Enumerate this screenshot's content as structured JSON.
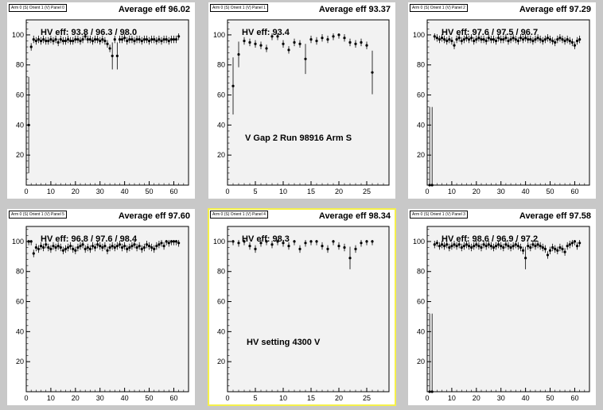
{
  "pads": [
    {
      "tag": "Arm 0 (S) Orient 1 (V) Panel 0",
      "average": "Average eff 96.02",
      "hv": "HV eff:   93.8 / 96.3 / 98.0",
      "note": "",
      "selected": false
    },
    {
      "tag": "Arm 0 (S) Orient 1 (V) Panel 1",
      "average": "Average eff 93.37",
      "hv": "HV eff:   93.4",
      "note": "V Gap 2 Run 98916 Arm S",
      "selected": false
    },
    {
      "tag": "Arm 0 (S) Orient 1 (V) Panel 2",
      "average": "Average eff 97.29",
      "hv": "HV eff:   97.6 / 97.5 / 96.7",
      "note": "",
      "selected": false
    },
    {
      "tag": "Arm 0 (S) Orient 1 (V) Panel 5",
      "average": "Average eff 97.60",
      "hv": "HV eff:   96.8 / 97.6 / 98.4",
      "note": "",
      "selected": false
    },
    {
      "tag": "Arm 0 (S) Orient 1 (V) Panel 4",
      "average": "Average eff 98.34",
      "hv": "HV eff:   98.3",
      "note": "HV setting 4300 V",
      "selected": true
    },
    {
      "tag": "Arm 0 (S) Orient 1 (V) Panel 3",
      "average": "Average eff 97.58",
      "hv": "HV eff:   98.6 / 96.9 / 97.2",
      "note": "",
      "selected": false
    }
  ],
  "chart_data": [
    {
      "type": "scatter",
      "xlim": [
        0,
        66
      ],
      "ylim": [
        0,
        110
      ],
      "xticks": [
        0,
        10,
        20,
        30,
        40,
        50,
        60
      ],
      "yticks": [
        20,
        40,
        60,
        80,
        100
      ],
      "x": [
        1,
        2,
        3,
        4,
        5,
        6,
        7,
        8,
        9,
        10,
        11,
        12,
        13,
        14,
        15,
        16,
        17,
        18,
        19,
        20,
        21,
        22,
        23,
        24,
        25,
        26,
        27,
        28,
        29,
        30,
        31,
        32,
        33,
        34,
        35,
        36,
        37,
        38,
        39,
        40,
        41,
        42,
        43,
        44,
        45,
        46,
        47,
        48,
        49,
        50,
        51,
        52,
        53,
        54,
        55,
        56,
        57,
        58,
        59,
        60,
        61,
        62
      ],
      "y": [
        40,
        92,
        97,
        96,
        97,
        96,
        97,
        96,
        96,
        97,
        96,
        97,
        95,
        97,
        96,
        96,
        97,
        96,
        96,
        97,
        97,
        96,
        97,
        99,
        97,
        97,
        96,
        97,
        97,
        96,
        97,
        96,
        94,
        91,
        86,
        97,
        86,
        97,
        97,
        98,
        96,
        97,
        97,
        96,
        97,
        97,
        96,
        97,
        97,
        96,
        97,
        97,
        96,
        97,
        96,
        97,
        97,
        96,
        97,
        97,
        97,
        99
      ]
    },
    {
      "type": "scatter",
      "xlim": [
        0,
        29
      ],
      "ylim": [
        0,
        110
      ],
      "xticks": [
        0,
        5,
        10,
        15,
        20,
        25
      ],
      "yticks": [
        20,
        40,
        60,
        80,
        100
      ],
      "x": [
        1,
        2,
        3,
        4,
        5,
        6,
        7,
        8,
        9,
        10,
        11,
        12,
        13,
        14,
        15,
        16,
        17,
        18,
        19,
        20,
        21,
        22,
        23,
        24,
        25,
        26
      ],
      "y": [
        66,
        87,
        96,
        95,
        94,
        93,
        91,
        99,
        99,
        94,
        90,
        95,
        94,
        84,
        97,
        96,
        98,
        97,
        99,
        100,
        98,
        95,
        94,
        95,
        93,
        75
      ]
    },
    {
      "type": "scatter",
      "xlim": [
        0,
        66
      ],
      "ylim": [
        0,
        110
      ],
      "xticks": [
        0,
        10,
        20,
        30,
        40,
        50,
        60
      ],
      "yticks": [
        20,
        40,
        60,
        80,
        100
      ],
      "x": [
        1,
        2,
        3,
        4,
        5,
        6,
        7,
        8,
        9,
        10,
        11,
        12,
        13,
        14,
        15,
        16,
        17,
        18,
        19,
        20,
        21,
        22,
        23,
        24,
        25,
        26,
        27,
        28,
        29,
        30,
        31,
        32,
        33,
        34,
        35,
        36,
        37,
        38,
        39,
        40,
        41,
        42,
        43,
        44,
        45,
        46,
        47,
        48,
        49,
        50,
        51,
        52,
        53,
        54,
        55,
        56,
        57,
        58,
        59,
        60,
        61,
        62
      ],
      "y": [
        0,
        0,
        99,
        98,
        97,
        98,
        97,
        96,
        97,
        96,
        93,
        97,
        98,
        96,
        97,
        98,
        97,
        98,
        96,
        97,
        98,
        97,
        97,
        96,
        98,
        97,
        97,
        96,
        98,
        97,
        97,
        98,
        96,
        97,
        98,
        97,
        96,
        98,
        97,
        98,
        97,
        97,
        96,
        97,
        98,
        97,
        96,
        97,
        98,
        97,
        96,
        95,
        97,
        98,
        97,
        96,
        97,
        96,
        95,
        93,
        96,
        97
      ]
    },
    {
      "type": "scatter",
      "xlim": [
        0,
        66
      ],
      "ylim": [
        0,
        110
      ],
      "xticks": [
        0,
        10,
        20,
        30,
        40,
        50,
        60
      ],
      "yticks": [
        20,
        40,
        60,
        80,
        100
      ],
      "x": [
        1,
        2,
        3,
        4,
        5,
        6,
        7,
        8,
        9,
        10,
        11,
        12,
        13,
        14,
        15,
        16,
        17,
        18,
        19,
        20,
        21,
        22,
        23,
        24,
        25,
        26,
        27,
        28,
        29,
        30,
        31,
        32,
        33,
        34,
        35,
        36,
        37,
        38,
        39,
        40,
        41,
        42,
        43,
        44,
        45,
        46,
        47,
        48,
        49,
        50,
        51,
        52,
        53,
        54,
        55,
        56,
        57,
        58,
        59,
        60,
        61,
        62
      ],
      "y": [
        100,
        100,
        92,
        96,
        95,
        97,
        96,
        98,
        96,
        95,
        97,
        96,
        97,
        96,
        94,
        95,
        96,
        97,
        95,
        94,
        96,
        97,
        98,
        95,
        96,
        95,
        97,
        96,
        98,
        97,
        96,
        97,
        94,
        96,
        97,
        96,
        97,
        98,
        96,
        97,
        95,
        96,
        97,
        98,
        96,
        97,
        95,
        96,
        98,
        97,
        96,
        95,
        97,
        98,
        99,
        97,
        100,
        99,
        100,
        100,
        100,
        99
      ]
    },
    {
      "type": "scatter",
      "xlim": [
        0,
        29
      ],
      "ylim": [
        0,
        110
      ],
      "xticks": [
        0,
        5,
        10,
        15,
        20,
        25
      ],
      "yticks": [
        20,
        40,
        60,
        80,
        100
      ],
      "x": [
        1,
        2,
        3,
        4,
        5,
        6,
        7,
        8,
        9,
        10,
        11,
        12,
        13,
        14,
        15,
        16,
        17,
        18,
        19,
        20,
        21,
        22,
        23,
        24,
        25,
        26
      ],
      "y": [
        100,
        99,
        100,
        97,
        95,
        99,
        100,
        98,
        100,
        99,
        97,
        100,
        95,
        99,
        100,
        100,
        97,
        95,
        100,
        97,
        96,
        89,
        95,
        99,
        100,
        100
      ]
    },
    {
      "type": "scatter",
      "xlim": [
        0,
        66
      ],
      "ylim": [
        0,
        110
      ],
      "xticks": [
        0,
        10,
        20,
        30,
        40,
        50,
        60
      ],
      "yticks": [
        20,
        40,
        60,
        80,
        100
      ],
      "x": [
        1,
        2,
        3,
        4,
        5,
        6,
        7,
        8,
        9,
        10,
        11,
        12,
        13,
        14,
        15,
        16,
        17,
        18,
        19,
        20,
        21,
        22,
        23,
        24,
        25,
        26,
        27,
        28,
        29,
        30,
        31,
        32,
        33,
        34,
        35,
        36,
        37,
        38,
        39,
        40,
        41,
        42,
        43,
        44,
        45,
        46,
        47,
        48,
        49,
        50,
        51,
        52,
        53,
        54,
        55,
        56,
        57,
        58,
        59,
        60,
        61,
        62
      ],
      "y": [
        0,
        0,
        98,
        99,
        97,
        98,
        97,
        98,
        96,
        97,
        98,
        97,
        98,
        96,
        97,
        98,
        97,
        96,
        97,
        98,
        97,
        96,
        98,
        97,
        98,
        97,
        96,
        97,
        98,
        97,
        96,
        98,
        97,
        96,
        97,
        98,
        97,
        96,
        94,
        89,
        97,
        96,
        98,
        97,
        98,
        97,
        96,
        95,
        91,
        94,
        96,
        95,
        94,
        96,
        95,
        93,
        97,
        98,
        99,
        100,
        97,
        99
      ]
    }
  ]
}
